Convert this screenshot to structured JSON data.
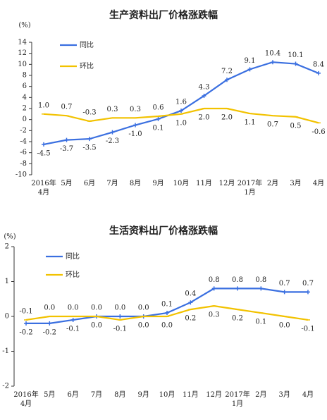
{
  "chart_data": [
    {
      "type": "line",
      "title": "生产资料出厂价格涨跌幅",
      "y_label": "(%)",
      "categories": [
        "2016年\n4月",
        "5月",
        "6月",
        "7月",
        "8月",
        "9月",
        "10月",
        "11月",
        "12月",
        "2017年\n1月",
        "2月",
        "3月",
        "4月"
      ],
      "series": [
        {
          "name": "同比",
          "color": "#3a6fe0",
          "values": [
            -4.5,
            -3.7,
            -3.5,
            -2.3,
            -1.0,
            0.1,
            1.6,
            4.3,
            7.2,
            9.1,
            10.4,
            10.1,
            8.4
          ],
          "value_labels": [
            "-4.5",
            "-3.7",
            "-3.5",
            "-2.3",
            "-1.0",
            "0.1",
            "1.6",
            "4.3",
            "7.2",
            "9.1",
            "10.4",
            "10.1",
            "8.4"
          ]
        },
        {
          "name": "环比",
          "color": "#f2c200",
          "values": [
            1.0,
            0.7,
            -0.3,
            0.3,
            0.3,
            0.6,
            1.0,
            2.0,
            2.0,
            1.1,
            0.7,
            0.5,
            -0.6
          ],
          "value_labels": [
            "1.0",
            "0.7",
            "-0.3",
            "0.3",
            "0.3",
            "0.6",
            "1.0",
            "2.0",
            "2.0",
            "1.1",
            "0.7",
            "0.5",
            "-0.6"
          ]
        }
      ],
      "ylim": [
        -10,
        14
      ],
      "yticks": [
        -10,
        -8,
        -6,
        -4,
        -2,
        0,
        2,
        4,
        6,
        8,
        10,
        12,
        14
      ],
      "legend": "upper left"
    },
    {
      "type": "line",
      "title": "生活资料出厂价格涨跌幅",
      "y_label": "(%)",
      "categories": [
        "2016年\n4月",
        "5月",
        "6月",
        "7月",
        "8月",
        "9月",
        "10月",
        "11月",
        "12月",
        "2017年\n1月",
        "2月",
        "3月",
        "4月"
      ],
      "series": [
        {
          "name": "同比",
          "color": "#3a6fe0",
          "values": [
            -0.2,
            -0.2,
            -0.1,
            0.0,
            0.0,
            0.0,
            0.1,
            0.4,
            0.8,
            0.8,
            0.8,
            0.7,
            0.7
          ],
          "value_labels": [
            "-0.2",
            "-0.2",
            "-0.1",
            "0.0",
            "0.0",
            "0.0",
            "0.1",
            "0.4",
            "0.8",
            "0.8",
            "0.8",
            "0.7",
            "0.7"
          ]
        },
        {
          "name": "环比",
          "color": "#f2c200",
          "values": [
            -0.1,
            0.0,
            0.0,
            0.0,
            -0.1,
            0.0,
            0.0,
            0.2,
            0.3,
            0.2,
            0.1,
            0.0,
            -0.1
          ],
          "value_labels": [
            "-0.1",
            "0.0",
            "0.0",
            "0.0",
            "-0.1",
            "0.0",
            "0.0",
            "0.2",
            "0.3",
            "0.2",
            "0.1",
            "0.0",
            "-0.1"
          ]
        }
      ],
      "ylim": [
        -2,
        2
      ],
      "yticks": [
        -2,
        -1,
        0,
        1,
        2
      ],
      "legend": "upper left"
    }
  ]
}
